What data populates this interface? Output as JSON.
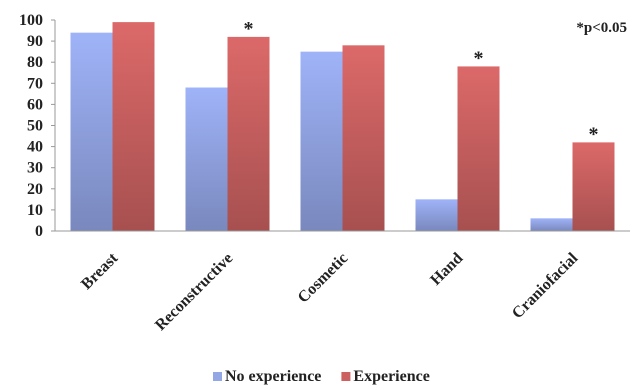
{
  "chart_data": {
    "type": "bar",
    "title": "",
    "xlabel": "",
    "ylabel": "",
    "categories": [
      "Breast",
      "Reconstructive",
      "Cosmetic",
      "Hand",
      "Craniofacial"
    ],
    "series": [
      {
        "name": "No experience",
        "values": [
          94,
          68,
          85,
          15,
          6
        ],
        "color": "#93a6e6"
      },
      {
        "name": "Experience",
        "values": [
          99,
          92,
          88,
          78,
          42
        ],
        "color": "#cc6161"
      }
    ],
    "significant": [
      false,
      true,
      false,
      true,
      true
    ],
    "significance_marker": "*",
    "annotation": "*p<0.05",
    "ylim": [
      0,
      100
    ],
    "yticks": [
      0,
      10,
      20,
      30,
      40,
      50,
      60,
      70,
      80,
      90,
      100
    ],
    "grid": false,
    "legend": "bottom"
  }
}
